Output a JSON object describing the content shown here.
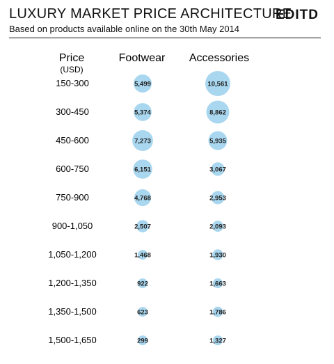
{
  "header": {
    "title": "LUXURY MARKET PRICE ARCHITECTURE",
    "subtitle": "Based on products available online on the 30th May 2014",
    "logo": "EDITD"
  },
  "chart_data": {
    "type": "bubble",
    "row_header": "Price",
    "row_unit": "(USD)",
    "series_names": [
      "Footwear",
      "Accessories"
    ],
    "categories": [
      "150-300",
      "300-450",
      "450-600",
      "600-750",
      "750-900",
      "900-1,050",
      "1,050-1,200",
      "1,200-1,350",
      "1,350-1,500",
      "1,500-1,650"
    ],
    "series": [
      {
        "name": "Footwear",
        "values": [
          5499,
          5374,
          7273,
          6151,
          4768,
          2507,
          1468,
          922,
          623,
          299
        ],
        "labels": [
          "5,499",
          "5,374",
          "7,273",
          "6,151",
          "4,768",
          "2,507",
          "1,468",
          "922",
          "623",
          "299"
        ]
      },
      {
        "name": "Accessories",
        "values": [
          10561,
          8862,
          5935,
          3067,
          2953,
          2093,
          1930,
          1663,
          1786,
          1327
        ],
        "labels": [
          "10,561",
          "8,862",
          "5,935",
          "3,067",
          "2,953",
          "2,093",
          "1,930",
          "1,663",
          "1,786",
          "1,327"
        ]
      }
    ],
    "bubble_color": "#a9d7ef",
    "grid": false
  }
}
